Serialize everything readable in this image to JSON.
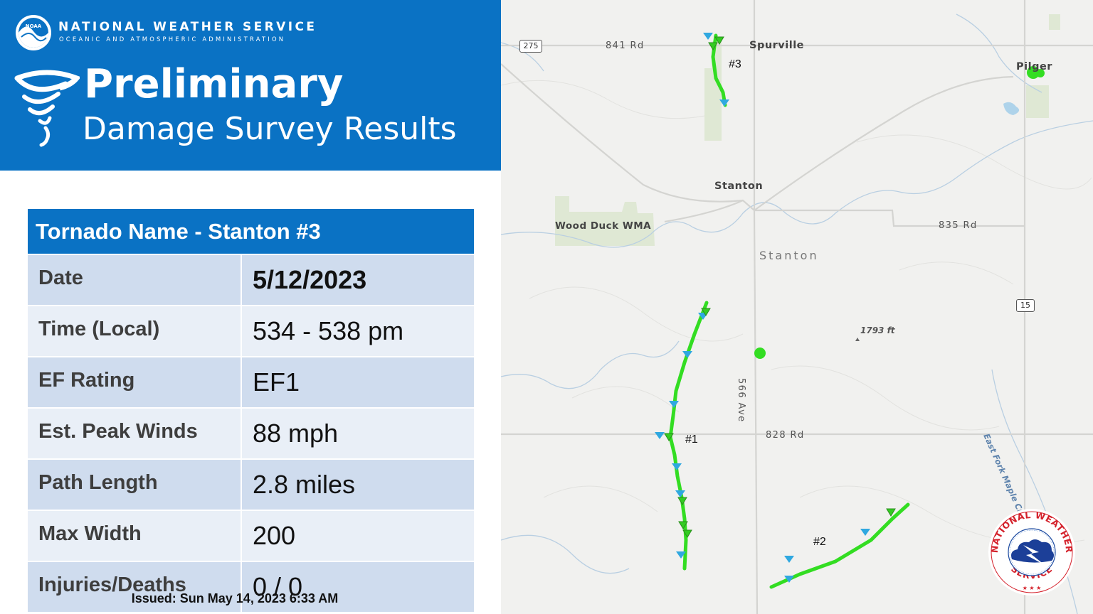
{
  "header": {
    "agency_name": "NATIONAL WEATHER SERVICE",
    "agency_sub": "OCEANIC AND ATMOSPHERIC ADMINISTRATION",
    "noaa_logo_text": "NOAA",
    "title_line1": "Preliminary",
    "title_line2": "Damage Survey Results",
    "brand_color": "#0a72c4"
  },
  "survey": {
    "heading": "Tornado Name - Stanton #3",
    "rows": [
      {
        "label": "Date",
        "value": "5/12/2023"
      },
      {
        "label": "Time (Local)",
        "value": "534 - 538 pm"
      },
      {
        "label": "EF Rating",
        "value": "EF1"
      },
      {
        "label": "Est. Peak Winds",
        "value": "88 mph"
      },
      {
        "label": "Path Length",
        "value": "2.8 miles"
      },
      {
        "label": "Max Width",
        "value": "200"
      },
      {
        "label": "Injuries/Deaths",
        "value": "0 / 0"
      }
    ],
    "issued": "Issued: Sun May 14, 2023 6:33 AM"
  },
  "map": {
    "roads": {
      "r841": "841 Rd",
      "r835": "835 Rd",
      "r828": "828 Rd",
      "ave566": "566 Ave",
      "us275": "275",
      "hwy15": "15"
    },
    "places": {
      "spurville": "Spurville",
      "pilger": "Pilger",
      "stanton_town": "Stanton",
      "stanton_county": "Stanton",
      "wood_duck": "Wood Duck WMA",
      "elevation": "1793 ft",
      "creek": "East Fork Maple Creek"
    },
    "tracks": {
      "t1": "#1",
      "t2": "#2",
      "t3": "#3"
    },
    "track_color": "#33dd22",
    "marker_color": "#2fa8e0"
  },
  "seal": {
    "text_top": "NATIONAL WEATHER SERVICE",
    "text_split": "NATIONAL WEATHER",
    "text_bottom": "SERVICE",
    "stars": "★ ★ ★"
  }
}
